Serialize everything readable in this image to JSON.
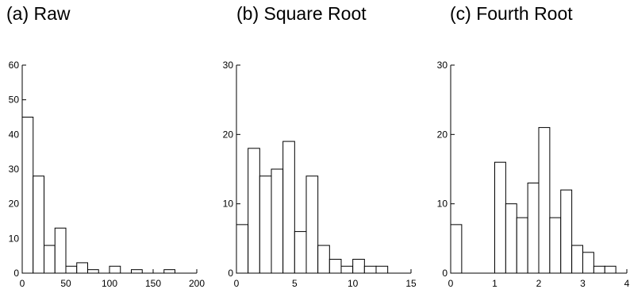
{
  "chart_data": [
    {
      "type": "bar",
      "title": "(a) Raw",
      "xlim": [
        0,
        200
      ],
      "ylim": [
        0,
        60
      ],
      "xticks": [
        "0",
        "50",
        "100",
        "150",
        "200"
      ],
      "yticks": [
        "0",
        "10",
        "20",
        "30",
        "40",
        "50",
        "60"
      ],
      "bin_edges": [
        0,
        12.5,
        25,
        37.5,
        50,
        62.5,
        75,
        87.5,
        100,
        112.5,
        125,
        137.5,
        150,
        162.5,
        175
      ],
      "values": [
        45,
        28,
        8,
        13,
        2,
        3,
        1,
        0,
        2,
        0,
        1,
        0,
        0,
        1
      ]
    },
    {
      "type": "bar",
      "title": "(b) Square Root",
      "xlim": [
        0,
        15
      ],
      "ylim": [
        0,
        30
      ],
      "xticks": [
        "0",
        "5",
        "10",
        "15"
      ],
      "yticks": [
        "0",
        "10",
        "20",
        "30"
      ],
      "bin_edges": [
        0,
        1,
        2,
        3,
        4,
        5,
        6,
        7,
        8,
        9,
        10,
        11,
        12,
        13
      ],
      "values": [
        7,
        18,
        14,
        15,
        19,
        6,
        14,
        4,
        2,
        1,
        2,
        1,
        1
      ]
    },
    {
      "type": "bar",
      "title": "(c) Fourth Root",
      "xlim": [
        0,
        4
      ],
      "ylim": [
        0,
        30
      ],
      "xticks": [
        "0",
        "1",
        "2",
        "3",
        "4"
      ],
      "yticks": [
        "0",
        "10",
        "20",
        "30"
      ],
      "bin_edges": [
        0,
        0.25,
        0.5,
        0.75,
        1,
        1.25,
        1.5,
        1.75,
        2,
        2.25,
        2.5,
        2.75,
        3,
        3.25,
        3.5,
        3.75
      ],
      "values": [
        7,
        0,
        0,
        0,
        16,
        10,
        8,
        13,
        21,
        8,
        12,
        4,
        3,
        1,
        1
      ]
    }
  ]
}
